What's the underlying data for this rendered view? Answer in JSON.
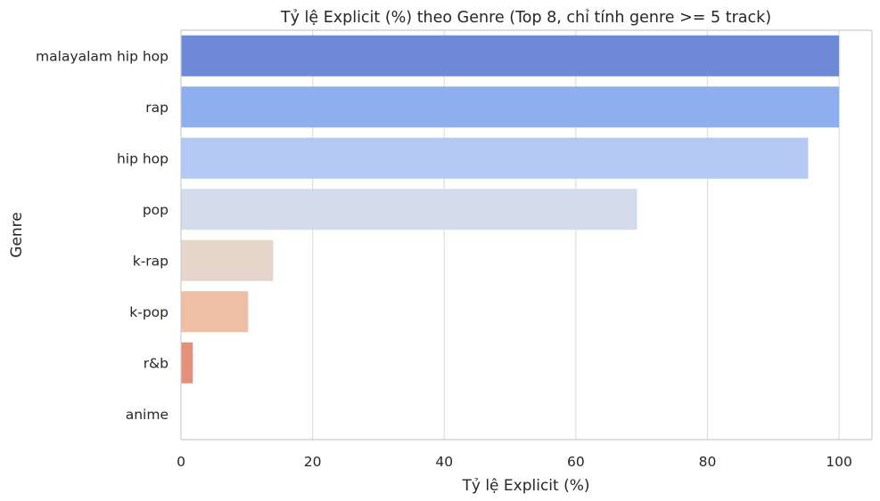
{
  "chart_data": {
    "type": "bar",
    "orientation": "horizontal",
    "title": "Tỷ lệ Explicit (%) theo Genre (Top 8, chỉ tính genre >= 5 track)",
    "xlabel": "Tỷ lệ Explicit (%)",
    "ylabel": "Genre",
    "xlim": [
      0,
      105
    ],
    "xticks": [
      0,
      20,
      40,
      60,
      80,
      100
    ],
    "grid": true,
    "categories": [
      "malayalam hip hop",
      "rap",
      "hip hop",
      "pop",
      "k-rap",
      "k-pop",
      "r&b",
      "anime"
    ],
    "values": [
      100,
      100,
      95.3,
      69.3,
      14.0,
      10.2,
      1.8,
      0
    ],
    "colors": [
      "#6f89d9",
      "#8faeee",
      "#b3c9f4",
      "#d2dceb",
      "#e6d5cb",
      "#eebea5",
      "#e5907a",
      "#d86b5c"
    ]
  }
}
